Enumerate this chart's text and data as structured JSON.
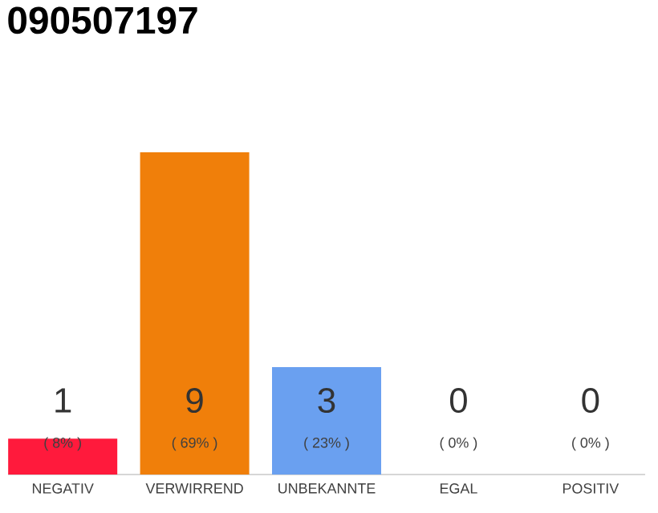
{
  "chart_data": {
    "type": "bar",
    "title": "090507197",
    "categories": [
      "NEGATIV",
      "VERWIRREND",
      "UNBEKANNTE",
      "EGAL",
      "POSITIV"
    ],
    "values": [
      1,
      9,
      3,
      0,
      0
    ],
    "colors": [
      "#ff1a3c",
      "#f07f0a",
      "#6aa0f0",
      "#cccccc",
      "#cccccc"
    ],
    "ylim": [
      0,
      9
    ],
    "value_labels": [
      "1",
      "9",
      "3",
      "0",
      "0"
    ],
    "annotations": [
      "( 8% )",
      "( 69% )",
      "( 23% )",
      "( 0% )",
      "( 0% )"
    ]
  }
}
